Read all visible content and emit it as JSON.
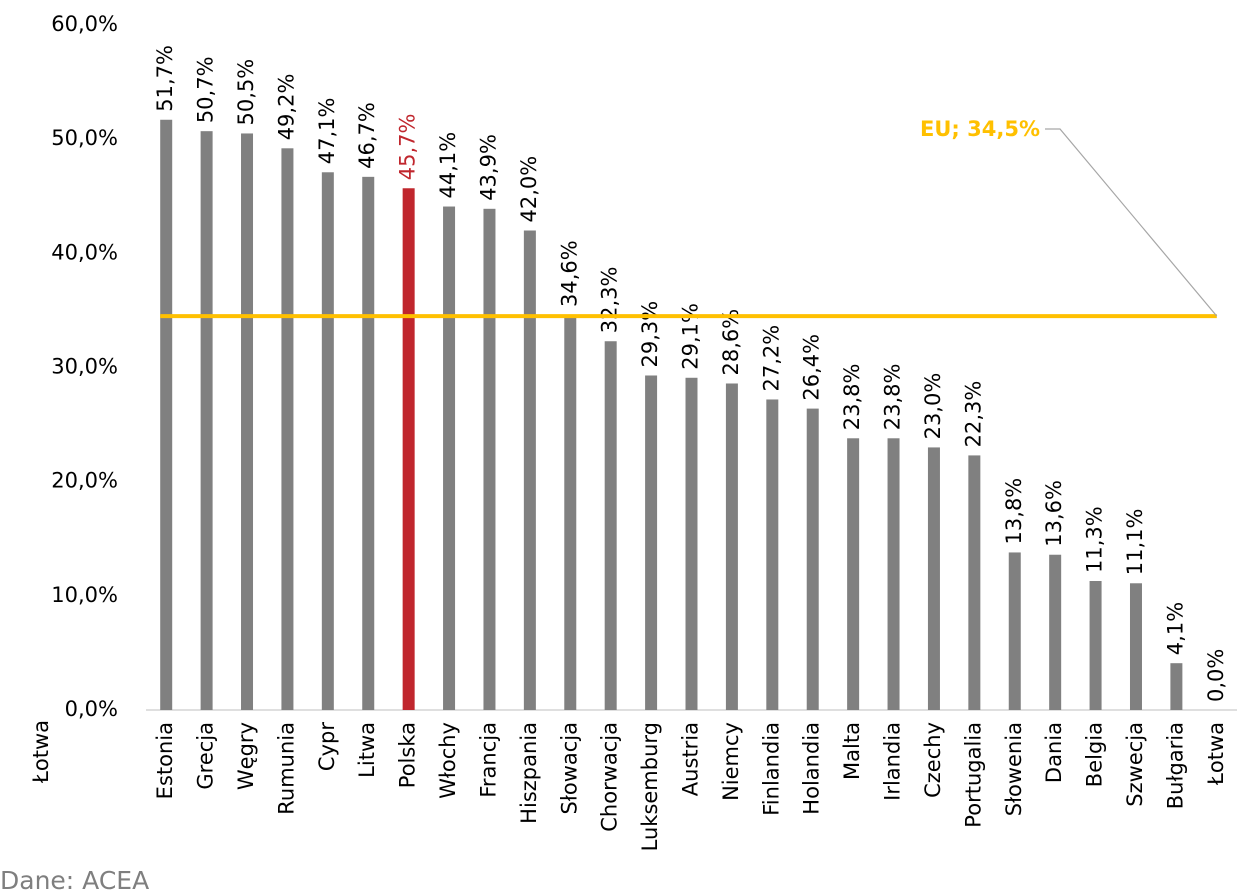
{
  "chart_data": {
    "type": "bar",
    "categories": [
      "Estonia",
      "Grecja",
      "Węgry",
      "Rumunia",
      "Cypr",
      "Litwa",
      "Polska",
      "Włochy",
      "Francja",
      "Hiszpania",
      "Słowacja",
      "Chorwacja",
      "Luksemburg",
      "Austria",
      "Niemcy",
      "Finlandia",
      "Holandia",
      "Malta",
      "Irlandia",
      "Czechy",
      "Portugalia",
      "Słowenia",
      "Dania",
      "Belgia",
      "Szwecja",
      "Bułgaria",
      "Łotwa"
    ],
    "values": [
      51.7,
      50.7,
      50.5,
      49.2,
      47.1,
      46.7,
      45.7,
      44.1,
      43.9,
      42.0,
      34.6,
      32.3,
      29.3,
      29.1,
      28.6,
      27.2,
      26.4,
      23.8,
      23.8,
      23.0,
      22.3,
      13.8,
      13.6,
      11.3,
      11.1,
      4.1,
      0.0
    ],
    "value_labels": [
      "51,7%",
      "50,7%",
      "50,5%",
      "49,2%",
      "47,1%",
      "46,7%",
      "45,7%",
      "44,1%",
      "43,9%",
      "42,0%",
      "34,6%",
      "32,3%",
      "29,3%",
      "29,1%",
      "28,6%",
      "27,2%",
      "26,4%",
      "23,8%",
      "23,8%",
      "23,0%",
      "22,3%",
      "13,8%",
      "13,6%",
      "11,3%",
      "11,1%",
      "4,1%",
      "0,0%"
    ],
    "color": "#808080",
    "highlight": "Polska",
    "highlight_color": "#c0262d",
    "ylim": [
      0,
      60
    ],
    "yticks": [
      {
        "value": 0,
        "label": "0,0%"
      },
      {
        "value": 10,
        "label": "10,0%"
      },
      {
        "value": 20,
        "label": "20,0%"
      },
      {
        "value": 30,
        "label": "30,0%"
      },
      {
        "value": 40,
        "label": "40,0%"
      },
      {
        "value": 50,
        "label": "50,0%"
      },
      {
        "value": 60,
        "label": "60,0%"
      }
    ],
    "reference_line": {
      "value": 34.5,
      "label": "EU; 34,5%",
      "color": "#ffc000"
    },
    "clipped_label": "Łotwa",
    "source": "Dane: ACEA"
  }
}
